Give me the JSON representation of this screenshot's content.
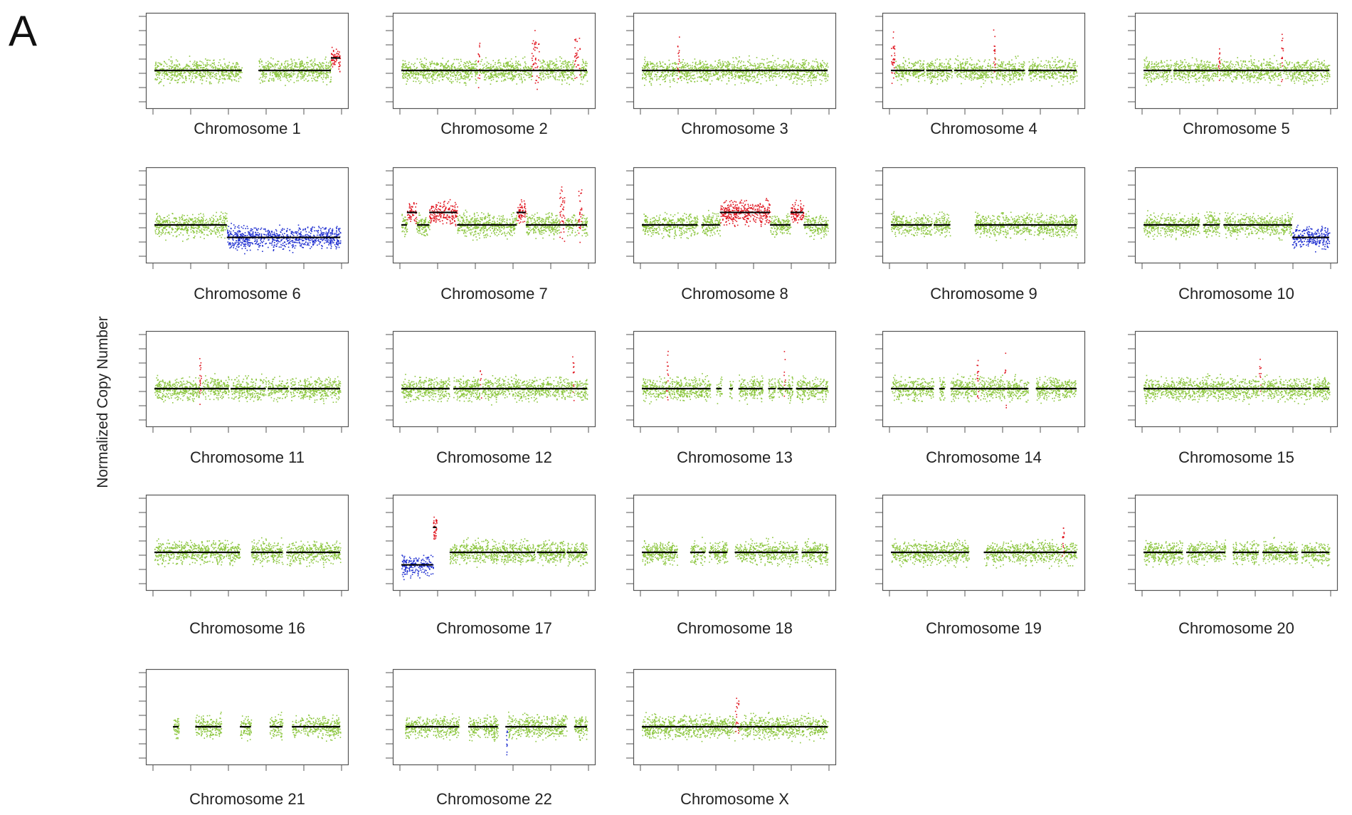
{
  "panel_label": "A",
  "colors": {
    "neutral": "#8cc63f",
    "gain": "#e0141e",
    "loss": "#1f2fd0",
    "segment": "#000000",
    "frame": "#555555"
  },
  "chart_data": {
    "type": "scatter",
    "title": "",
    "ylabel": "Normalized Copy Number",
    "xlabel": "",
    "grid": false,
    "panels": [
      {
        "label": "Chromosome 1",
        "gaps": [
          [
            0.47,
            0.56
          ]
        ],
        "events": [
          {
            "start": 0.95,
            "end": 1.0,
            "type": "gain",
            "level": 1.0
          }
        ]
      },
      {
        "label": "Chromosome 2",
        "gaps": [],
        "events": [
          {
            "start": 0.7,
            "end": 0.74,
            "type": "gain",
            "level": 1.0
          },
          {
            "start": 0.93,
            "end": 0.96,
            "type": "gain",
            "level": 1.0
          },
          {
            "start": 0.41,
            "end": 0.42,
            "type": "gain",
            "level": 0.9
          }
        ]
      },
      {
        "label": "Chromosome 3",
        "gaps": [],
        "events": [
          {
            "start": 0.19,
            "end": 0.2,
            "type": "gain",
            "level": 1.0
          }
        ]
      },
      {
        "label": "Chromosome 4",
        "gaps": [
          [
            0.18,
            0.19
          ],
          [
            0.33,
            0.34
          ],
          [
            0.72,
            0.74
          ]
        ],
        "events": [
          {
            "start": 0.0,
            "end": 0.02,
            "type": "gain",
            "level": 0.8
          },
          {
            "start": 0.55,
            "end": 0.56,
            "type": "gain",
            "level": 1.0
          }
        ]
      },
      {
        "label": "Chromosome 5",
        "gaps": [
          [
            0.15,
            0.16
          ]
        ],
        "events": [
          {
            "start": 0.4,
            "end": 0.41,
            "type": "gain",
            "level": 0.8
          },
          {
            "start": 0.74,
            "end": 0.75,
            "type": "gain",
            "level": 1.0
          }
        ]
      },
      {
        "label": "Chromosome 6",
        "gaps": [],
        "events": [
          {
            "start": 0.39,
            "end": 1.0,
            "type": "loss",
            "level": -1.0
          }
        ]
      },
      {
        "label": "Chromosome 7",
        "gaps": [],
        "events": [
          {
            "start": 0.03,
            "end": 0.08,
            "type": "gain",
            "level": 1.0
          },
          {
            "start": 0.15,
            "end": 0.3,
            "type": "gain",
            "level": 1.0
          },
          {
            "start": 0.62,
            "end": 0.67,
            "type": "gain",
            "level": 1.0
          },
          {
            "start": 0.85,
            "end": 0.88,
            "type": "gain",
            "level": 1.0
          },
          {
            "start": 0.95,
            "end": 0.97,
            "type": "gain",
            "level": 1.0
          }
        ]
      },
      {
        "label": "Chromosome 8",
        "gaps": [
          [
            0.3,
            0.32
          ]
        ],
        "events": [
          {
            "start": 0.42,
            "end": 0.69,
            "type": "gain",
            "level": 1.0
          },
          {
            "start": 0.8,
            "end": 0.87,
            "type": "gain",
            "level": 1.0
          }
        ]
      },
      {
        "label": "Chromosome 9",
        "gaps": [
          [
            0.22,
            0.23
          ],
          [
            0.32,
            0.45
          ]
        ],
        "events": []
      },
      {
        "label": "Chromosome 10",
        "gaps": [
          [
            0.3,
            0.32
          ],
          [
            0.41,
            0.43
          ]
        ],
        "events": [
          {
            "start": 0.8,
            "end": 1.0,
            "type": "loss",
            "level": -1.0
          }
        ]
      },
      {
        "label": "Chromosome 11",
        "gaps": [
          [
            0.4,
            0.41
          ],
          [
            0.6,
            0.61
          ],
          [
            0.72,
            0.73
          ]
        ],
        "events": [
          {
            "start": 0.24,
            "end": 0.25,
            "type": "gain",
            "level": 1.0
          }
        ]
      },
      {
        "label": "Chromosome 12",
        "gaps": [
          [
            0.26,
            0.28
          ]
        ],
        "events": [
          {
            "start": 0.42,
            "end": 0.43,
            "type": "gain",
            "level": 1.0
          },
          {
            "start": 0.92,
            "end": 0.93,
            "type": "gain",
            "level": 1.0
          }
        ]
      },
      {
        "label": "Chromosome 13",
        "gaps": [
          [
            0.37,
            0.4
          ],
          [
            0.43,
            0.47
          ],
          [
            0.49,
            0.52
          ],
          [
            0.65,
            0.68
          ],
          [
            0.72,
            0.73
          ],
          [
            0.81,
            0.83
          ]
        ],
        "events": [
          {
            "start": 0.13,
            "end": 0.14,
            "type": "gain",
            "level": 1.0
          },
          {
            "start": 0.76,
            "end": 0.77,
            "type": "gain",
            "level": 0.9
          }
        ]
      },
      {
        "label": "Chromosome 14",
        "gaps": [
          [
            0.23,
            0.26
          ],
          [
            0.29,
            0.32
          ],
          [
            0.74,
            0.78
          ]
        ],
        "events": [
          {
            "start": 0.46,
            "end": 0.47,
            "type": "gain",
            "level": 0.8
          },
          {
            "start": 0.61,
            "end": 0.62,
            "type": "gain",
            "level": 1.0
          }
        ]
      },
      {
        "label": "Chromosome 15",
        "gaps": [
          [
            0.9,
            0.91
          ]
        ],
        "events": [
          {
            "start": 0.62,
            "end": 0.63,
            "type": "gain",
            "level": 1.0
          }
        ]
      },
      {
        "label": "Chromosome 16",
        "gaps": [
          [
            0.46,
            0.52
          ],
          [
            0.69,
            0.71
          ]
        ],
        "events": []
      },
      {
        "label": "Chromosome 17",
        "gaps": [
          [
            0.19,
            0.26
          ],
          [
            0.72,
            0.73
          ],
          [
            0.88,
            0.89
          ]
        ],
        "events": [
          {
            "start": 0.0,
            "end": 0.19,
            "type": "loss",
            "level": -1.0
          },
          {
            "start": 0.17,
            "end": 0.26,
            "type": "gain",
            "level": 2.0
          }
        ]
      },
      {
        "label": "Chromosome 18",
        "gaps": [
          [
            0.19,
            0.26
          ],
          [
            0.34,
            0.36
          ],
          [
            0.46,
            0.5
          ],
          [
            0.84,
            0.86
          ]
        ],
        "events": []
      },
      {
        "label": "Chromosome 19",
        "gaps": [
          [
            0.42,
            0.5
          ]
        ],
        "events": [
          {
            "start": 0.92,
            "end": 0.93,
            "type": "gain",
            "level": 0.9
          }
        ]
      },
      {
        "label": "Chromosome 20",
        "gaps": [
          [
            0.21,
            0.23
          ],
          [
            0.44,
            0.48
          ],
          [
            0.62,
            0.64
          ],
          [
            0.83,
            0.85
          ]
        ],
        "events": []
      },
      {
        "label": "Chromosome 21",
        "gaps": [
          [
            0.0,
            0.1
          ],
          [
            0.13,
            0.22
          ],
          [
            0.36,
            0.46
          ],
          [
            0.52,
            0.62
          ],
          [
            0.69,
            0.74
          ]
        ],
        "events": []
      },
      {
        "label": "Chromosome 22",
        "gaps": [
          [
            0.0,
            0.02
          ],
          [
            0.31,
            0.36
          ],
          [
            0.52,
            0.56
          ],
          [
            0.89,
            0.93
          ]
        ],
        "events": [
          {
            "start": 0.55,
            "end": 0.57,
            "type": "loss",
            "level": -1.0
          }
        ]
      },
      {
        "label": "Chromosome X",
        "gaps": [],
        "events": [
          {
            "start": 0.5,
            "end": 0.52,
            "type": "gain",
            "level": 1.0
          }
        ]
      }
    ]
  }
}
